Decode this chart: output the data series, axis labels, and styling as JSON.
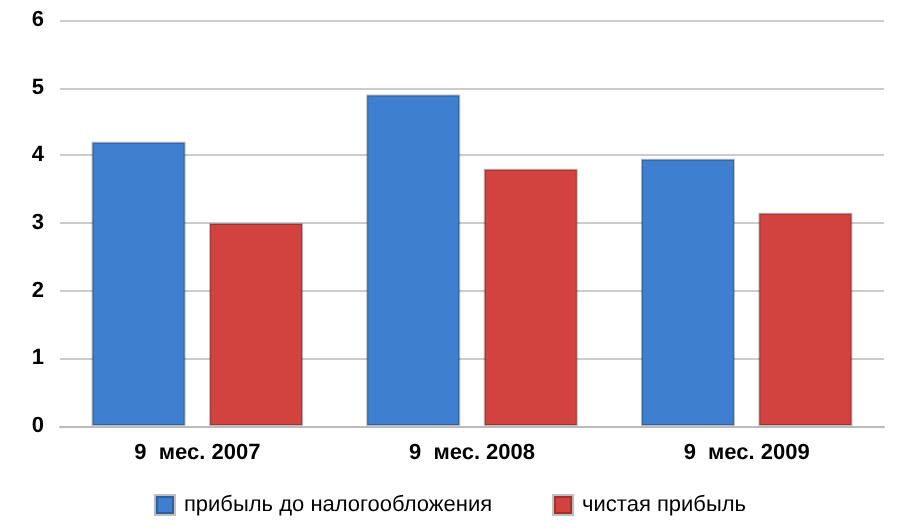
{
  "chart_data": {
    "type": "bar",
    "categories": [
      "9  мес. 2007",
      "9  мес. 2008",
      "9  мес. 2009"
    ],
    "series": [
      {
        "name": "прибыль до налогообложения",
        "color": "#3f7fcf",
        "values": [
          4.2,
          4.9,
          3.95
        ]
      },
      {
        "name": "чистая прибыль",
        "color": "#d24340",
        "values": [
          3.0,
          3.8,
          3.15
        ]
      }
    ],
    "ylim": [
      0,
      6
    ],
    "yticks": [
      0,
      1,
      2,
      3,
      4,
      5,
      6
    ],
    "grid": "y",
    "legend": "bottom"
  }
}
